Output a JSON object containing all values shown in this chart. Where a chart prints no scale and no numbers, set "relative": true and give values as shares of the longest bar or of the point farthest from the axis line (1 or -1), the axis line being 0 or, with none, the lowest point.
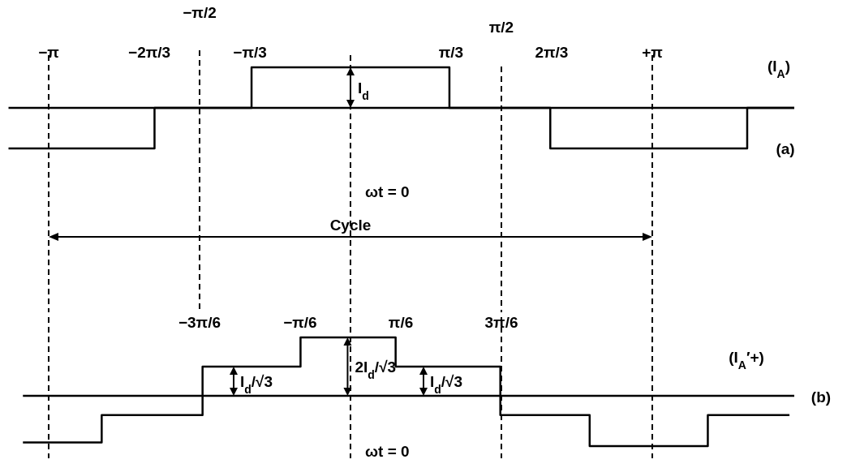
{
  "chart_data": [
    {
      "type": "step",
      "title": "(a)",
      "relative": true,
      "xlim": [
        -3.56,
        4.62
      ],
      "xticks": [
        {
          "value": -3.142,
          "label": "−π"
        },
        {
          "value": -2.094,
          "label": "−2π/3"
        },
        {
          "value": -1.047,
          "label": "−π/3"
        },
        {
          "value": 1.047,
          "label": "π/3"
        },
        {
          "value": 2.094,
          "label": "2π/3"
        },
        {
          "value": 3.142,
          "label": "+π"
        }
      ],
      "series": [
        {
          "name": "(I$_{A}$)",
          "color": "#000000",
          "x": [
            -3.56,
            -2.04,
            -1.03,
            1.03,
            2.08,
            4.13,
            4.62
          ],
          "values": [
            -1,
            0,
            1,
            0,
            -1,
            0,
            0
          ]
        }
      ],
      "ref_lines": [
        {
          "axis": "x",
          "value": -3.142,
          "line_style": "dashed"
        },
        {
          "axis": "x",
          "value": -1.571,
          "label": "−π/2",
          "line_style": "dashed"
        },
        {
          "axis": "x",
          "value": 0,
          "line_style": "dashed"
        },
        {
          "axis": "x",
          "value": 1.571,
          "label": "π/2",
          "line_style": "dashed"
        },
        {
          "axis": "x",
          "value": 3.142,
          "line_style": "dashed"
        }
      ],
      "annotations": [
        {
          "text": "I$_{d}$",
          "x": 0,
          "y": 0.5
        },
        "ωt = 0",
        "Cycle"
      ]
    },
    {
      "type": "step",
      "relative": true,
      "xlim": [
        -3.41,
        4.62
      ],
      "xticks": [
        {
          "value": -1.571,
          "label": "−3π/6"
        },
        {
          "value": -0.524,
          "label": "−π/6"
        },
        {
          "value": 0.524,
          "label": "π/6"
        },
        {
          "value": 1.571,
          "label": "3π/6"
        }
      ],
      "series": [
        {
          "name": "(I$_{A}$′+)",
          "color": "#000000",
          "x": [
            -3.41,
            -2.59,
            -1.54,
            -0.52,
            0.47,
            1.56,
            2.49,
            3.72,
            4.57
          ],
          "values": [
            -0.8,
            -0.33,
            0.5,
            1,
            0.5,
            -0.33,
            -0.86,
            -0.33,
            -0.33
          ]
        }
      ],
      "ref_lines": [
        {
          "axis": "x",
          "value": -3.142,
          "line_style": "dashed"
        },
        {
          "axis": "x",
          "value": 0,
          "line_style": "dashed"
        },
        {
          "axis": "x",
          "value": 1.571,
          "line_style": "dashed"
        },
        {
          "axis": "x",
          "value": 3.142,
          "line_style": "dashed"
        }
      ],
      "annotations": [
        "I$_{d}$/√3",
        {
          "text": "2I$_{d}$/√3",
          "x": -0.03,
          "y": 0.5
        },
        "I$_{d}$/√3",
        "ωt = 0",
        "(b)"
      ]
    }
  ]
}
